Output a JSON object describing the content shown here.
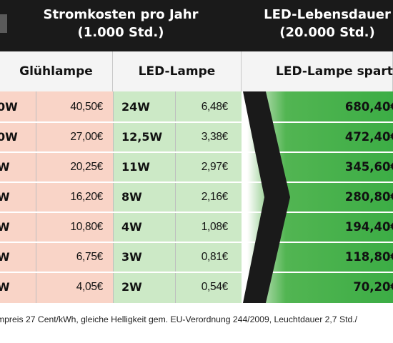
{
  "header": {
    "left_title_line1": "Stromkosten pro Jahr",
    "left_title_line2": "(1.000 Std.)",
    "right_title_line1": "LED-Lebensdauer",
    "right_title_line2": "(20.000 Std.)"
  },
  "columns": {
    "gluhlampe": "Glühlampe",
    "led_lampe": "LED-Lampe",
    "led_spart": "LED-Lampe spart"
  },
  "rows": [
    {
      "gluh_watt": "0W",
      "gluh_cost": "40,50€",
      "led_watt": "24W",
      "led_cost": "6,48€",
      "savings": "680,40€"
    },
    {
      "gluh_watt": "0W",
      "gluh_cost": "27,00€",
      "led_watt": "12,5W",
      "led_cost": "3,38€",
      "savings": "472,40€"
    },
    {
      "gluh_watt": "W",
      "gluh_cost": "20,25€",
      "led_watt": "11W",
      "led_cost": "2,97€",
      "savings": "345,60€"
    },
    {
      "gluh_watt": "W",
      "gluh_cost": "16,20€",
      "led_watt": "8W",
      "led_cost": "2,16€",
      "savings": "280,80€"
    },
    {
      "gluh_watt": "W",
      "gluh_cost": "10,80€",
      "led_watt": "4W",
      "led_cost": "1,08€",
      "savings": "194,40€"
    },
    {
      "gluh_watt": "W",
      "gluh_cost": "6,75€",
      "led_watt": "3W",
      "led_cost": "0,81€",
      "savings": "118,80€"
    },
    {
      "gluh_watt": "W",
      "gluh_cost": "4,05€",
      "led_watt": "2W",
      "led_cost": "0,54€",
      "savings": "70,20€"
    }
  ],
  "footnote": "mpreis 27 Cent/kWh, gleiche Helligkeit gem. EU-Verordnung 244/2009, Leuchtdauer 2,7 Std./",
  "colors": {
    "header_bg": "#1a1a1a",
    "gluh_bg": "#f9d4c7",
    "led_bg": "#cce9c6",
    "savings_bg": "#3cad45",
    "arrow": "#1a1a1a"
  },
  "icons": {
    "arrow": "right-arrow-chevron-icon"
  }
}
